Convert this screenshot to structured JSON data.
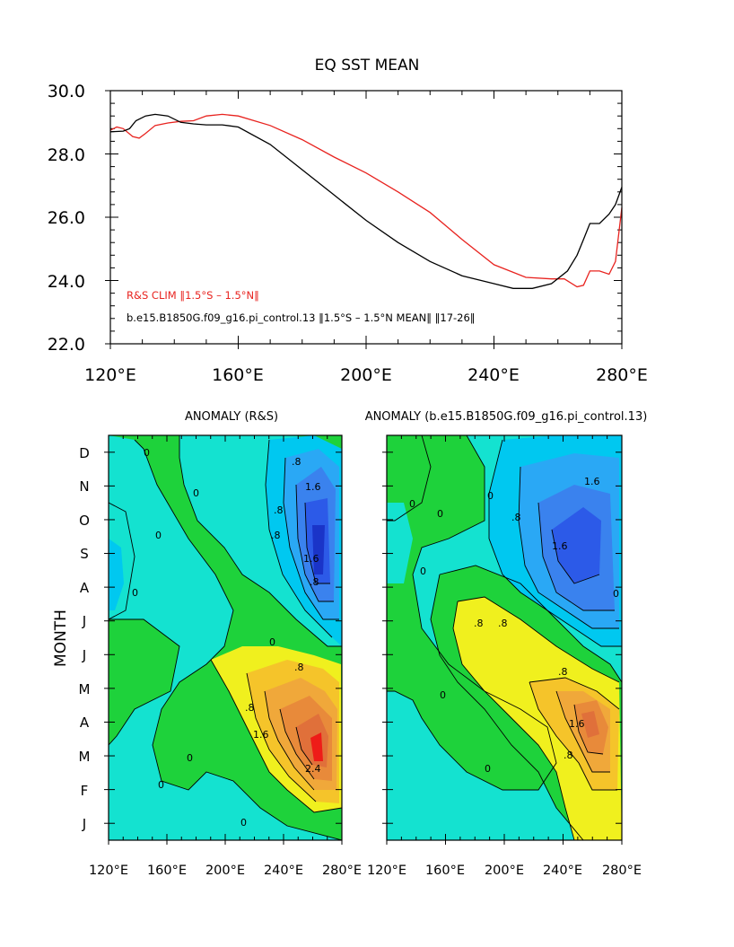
{
  "chart_data": [
    {
      "type": "line",
      "title": "EQ SST MEAN",
      "xlabel": "",
      "ylabel": "",
      "xlim": [
        120,
        280
      ],
      "ylim": [
        22,
        30
      ],
      "x_ticks": [
        "120°E",
        "160°E",
        "200°E",
        "240°E",
        "280°E"
      ],
      "y_ticks": [
        "30.0",
        "28.0",
        "26.0",
        "24.0",
        "22.0"
      ],
      "legend": [
        "R&S CLIM ‖1.5°S – 1.5°N‖",
        "b.e15.B1850G.f09_g16.pi_control.13 ‖1.5°S – 1.5°N MEAN‖ ‖17-26‖"
      ],
      "series": [
        {
          "name": "R&S CLIM ‖1.5°S – 1.5°N‖",
          "color": "#e8231f",
          "points": [
            [
              120,
              28.75
            ],
            [
              122,
              28.85
            ],
            [
              124,
              28.8
            ],
            [
              127,
              28.55
            ],
            [
              129,
              28.5
            ],
            [
              131,
              28.65
            ],
            [
              134,
              28.9
            ],
            [
              138,
              28.98
            ],
            [
              142,
              29.03
            ],
            [
              146,
              29.05
            ],
            [
              150,
              29.2
            ],
            [
              155,
              29.25
            ],
            [
              160,
              29.2
            ],
            [
              170,
              28.9
            ],
            [
              180,
              28.45
            ],
            [
              190,
              27.9
            ],
            [
              200,
              27.4
            ],
            [
              210,
              26.8
            ],
            [
              220,
              26.15
            ],
            [
              230,
              25.3
            ],
            [
              240,
              24.5
            ],
            [
              250,
              24.1
            ],
            [
              258,
              24.05
            ],
            [
              262,
              24.05
            ],
            [
              266,
              23.8
            ],
            [
              268,
              23.85
            ],
            [
              270,
              24.3
            ],
            [
              273,
              24.3
            ],
            [
              276,
              24.2
            ],
            [
              278,
              24.6
            ],
            [
              280,
              26.3
            ]
          ]
        },
        {
          "name": "b.e15.B1850G.f09_g16.pi_control.13 ‖1.5°S – 1.5°N MEAN‖ ‖17-26‖",
          "color": "#000000",
          "points": [
            [
              120,
              28.7
            ],
            [
              124,
              28.72
            ],
            [
              126,
              28.8
            ],
            [
              128,
              29.05
            ],
            [
              131,
              29.2
            ],
            [
              134,
              29.25
            ],
            [
              138,
              29.2
            ],
            [
              142,
              29.0
            ],
            [
              146,
              28.95
            ],
            [
              150,
              28.92
            ],
            [
              155,
              28.92
            ],
            [
              160,
              28.85
            ],
            [
              170,
              28.3
            ],
            [
              180,
              27.5
            ],
            [
              190,
              26.7
            ],
            [
              200,
              25.9
            ],
            [
              210,
              25.2
            ],
            [
              220,
              24.6
            ],
            [
              230,
              24.15
            ],
            [
              240,
              23.9
            ],
            [
              246,
              23.75
            ],
            [
              252,
              23.75
            ],
            [
              258,
              23.9
            ],
            [
              263,
              24.3
            ],
            [
              266,
              24.8
            ],
            [
              268,
              25.3
            ],
            [
              270,
              25.8
            ],
            [
              273,
              25.8
            ],
            [
              276,
              26.1
            ],
            [
              278,
              26.4
            ],
            [
              280,
              26.95
            ]
          ]
        }
      ]
    },
    {
      "type": "heatmap",
      "title": "ANOMALY (R&S)",
      "xlabel": "",
      "ylabel": "MONTH",
      "xlim": [
        120,
        280
      ],
      "x_ticks": [
        "120°E",
        "160°E",
        "200°E",
        "240°E",
        "280°E"
      ],
      "y_ticks": [
        "J",
        "F",
        "M",
        "A",
        "M",
        "J",
        "J",
        "A",
        "S",
        "O",
        "N",
        "D"
      ],
      "contour_labels": [
        "0",
        "0",
        "0",
        "0",
        ".8",
        ".8",
        ".8",
        ".8",
        "1.6",
        "1.6",
        ".8",
        ".8",
        "1.6",
        "2.4",
        "0",
        "0",
        "0",
        "0"
      ],
      "features": [
        {
          "kind": "cold",
          "lon": 262,
          "month": "S",
          "peak": -2.4
        },
        {
          "kind": "warm",
          "lon": 263,
          "month": "M",
          "peak": 3.2
        }
      ]
    },
    {
      "type": "heatmap",
      "title": "ANOMALY (b.e15.B1850G.f09_g16.pi_control.13)",
      "xlabel": "",
      "ylabel": "",
      "xlim": [
        120,
        280
      ],
      "x_ticks": [
        "120°E",
        "160°E",
        "200°E",
        "240°E",
        "280°E"
      ],
      "y_ticks": [
        "J",
        "F",
        "M",
        "A",
        "M",
        "J",
        "J",
        "A",
        "S",
        "O",
        "N",
        "D"
      ],
      "contour_labels": [
        "0",
        "0",
        "0",
        "0",
        ".8",
        "1.6",
        "1.6",
        ".8",
        ".8",
        ".8",
        ".8",
        "1.6",
        "0",
        "0",
        "0"
      ],
      "features": [
        {
          "kind": "cold",
          "lon": 250,
          "month": "S",
          "peak": -2.0
        },
        {
          "kind": "warm",
          "lon": 255,
          "month": "A",
          "peak": 2.4
        }
      ]
    }
  ]
}
